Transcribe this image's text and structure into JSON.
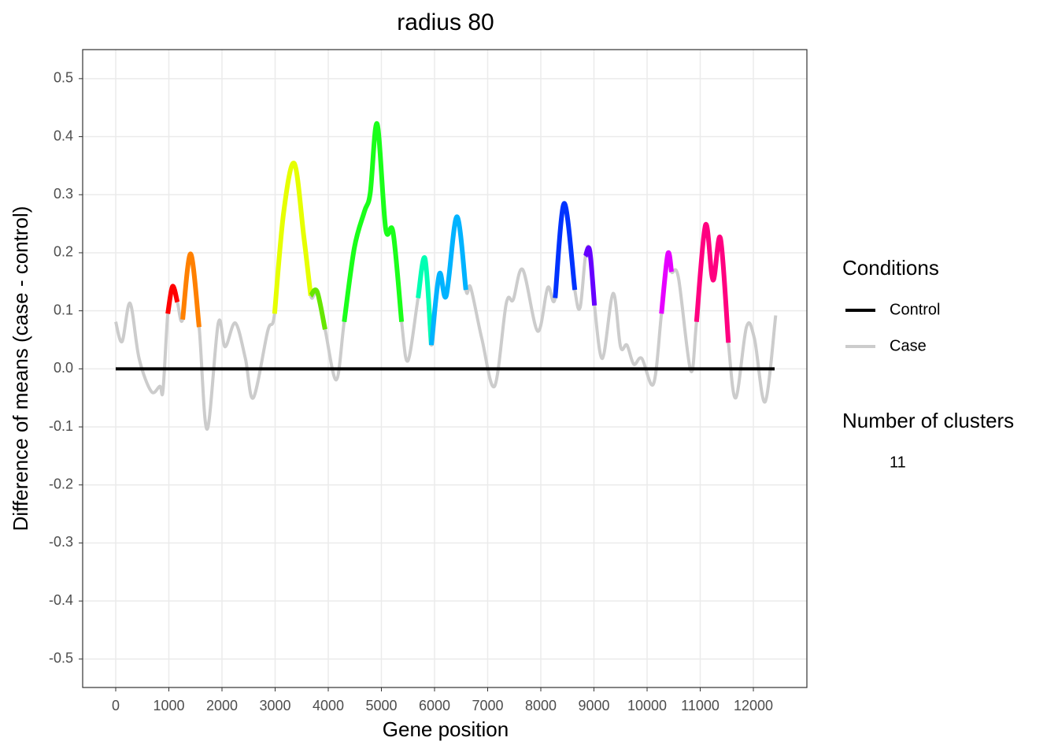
{
  "chart_data": {
    "type": "line",
    "title": "radius 80",
    "x_label": "Gene position",
    "y_label": "Difference of means (case - control)",
    "legend_title": "Conditions",
    "xlim": [
      -622,
      13007
    ],
    "ylim": [
      -0.549,
      0.55
    ],
    "xticks": [
      0,
      1000,
      2000,
      3000,
      4000,
      5000,
      6000,
      7000,
      8000,
      9000,
      10000,
      11000,
      12000
    ],
    "yticks": [
      -0.5,
      -0.4,
      -0.3,
      -0.2,
      -0.1,
      {
        "value": 0,
        "label": "0.0"
      },
      0.1,
      0.2,
      0.3,
      0.4,
      0.5
    ],
    "grid": true,
    "series": [
      {
        "name": "Control",
        "color": "#000000",
        "x": [
          0,
          12400
        ],
        "values": [
          0,
          0
        ]
      },
      {
        "name": "Case",
        "color": "#cccccc",
        "x": [
          0,
          120,
          270,
          440,
          670,
          830,
          890,
          980,
          1070,
          1160,
          1260,
          1410,
          1570,
          1720,
          1930,
          2060,
          2250,
          2440,
          2590,
          2860,
          2990,
          3160,
          3360,
          3540,
          3670,
          3790,
          3940,
          4150,
          4300,
          4490,
          4680,
          4790,
          4920,
          5080,
          5220,
          5380,
          5500,
          5690,
          5820,
          5940,
          6090,
          6220,
          6420,
          6590,
          6680,
          6890,
          7130,
          7350,
          7480,
          7660,
          7940,
          8130,
          8270,
          8440,
          8640,
          8740,
          8840,
          8920,
          9010,
          9160,
          9360,
          9500,
          9620,
          9750,
          9900,
          10120,
          10270,
          10390,
          10460,
          10590,
          10820,
          10930,
          11100,
          11240,
          11380,
          11530,
          11670,
          11870,
          12020,
          12220,
          12420
        ],
        "values": [
          0.081,
          0.047,
          0.113,
          0.018,
          -0.039,
          -0.03,
          -0.037,
          0.095,
          0.142,
          0.115,
          0.085,
          0.198,
          0.072,
          -0.104,
          0.079,
          0.038,
          0.079,
          0.018,
          -0.05,
          0.065,
          0.095,
          0.269,
          0.354,
          0.228,
          0.126,
          0.133,
          0.068,
          -0.019,
          0.081,
          0.208,
          0.271,
          0.303,
          0.422,
          0.242,
          0.235,
          0.081,
          0.014,
          0.122,
          0.19,
          0.041,
          0.163,
          0.126,
          0.262,
          0.136,
          0.14,
          0.052,
          -0.03,
          0.113,
          0.119,
          0.171,
          0.065,
          0.14,
          0.122,
          0.285,
          0.136,
          0.106,
          0.194,
          0.204,
          0.109,
          0.018,
          0.13,
          0.038,
          0.041,
          0.008,
          0.018,
          -0.026,
          0.095,
          0.198,
          0.167,
          0.157,
          -0.003,
          0.081,
          0.248,
          0.153,
          0.225,
          0.045,
          -0.05,
          0.072,
          0.052,
          -0.057,
          0.092
        ]
      }
    ],
    "clusters": [
      {
        "color": "#ff0000",
        "x": [
          980,
          1070,
          1160
        ],
        "values": [
          0.095,
          0.142,
          0.115
        ]
      },
      {
        "color": "#ff8000",
        "x": [
          1260,
          1410,
          1570
        ],
        "values": [
          0.085,
          0.198,
          0.072
        ]
      },
      {
        "color": "#e6ff00",
        "x": [
          2990,
          3160,
          3360,
          3540,
          3670
        ],
        "values": [
          0.095,
          0.269,
          0.354,
          0.228,
          0.126
        ]
      },
      {
        "color": "#66e600",
        "x": [
          3670,
          3790,
          3940
        ],
        "values": [
          0.126,
          0.133,
          0.068
        ]
      },
      {
        "color": "#1aff1a",
        "x": [
          4300,
          4490,
          4680,
          4790,
          4920,
          5080,
          5220,
          5380
        ],
        "values": [
          0.081,
          0.208,
          0.271,
          0.303,
          0.422,
          0.242,
          0.235,
          0.081
        ]
      },
      {
        "color": "#00ffb3",
        "x": [
          5690,
          5820,
          5940
        ],
        "values": [
          0.122,
          0.19,
          0.041
        ]
      },
      {
        "color": "#00b3ff",
        "x": [
          5940,
          6090,
          6220,
          6420,
          6590
        ],
        "values": [
          0.041,
          0.163,
          0.126,
          0.262,
          0.136
        ]
      },
      {
        "color": "#0033ff",
        "x": [
          8270,
          8440,
          8640
        ],
        "values": [
          0.122,
          0.285,
          0.136
        ]
      },
      {
        "color": "#6600ff",
        "x": [
          8840,
          8920,
          9010
        ],
        "values": [
          0.194,
          0.204,
          0.109
        ]
      },
      {
        "color": "#e600ff",
        "x": [
          10270,
          10390,
          10460
        ],
        "values": [
          0.095,
          0.198,
          0.167
        ]
      },
      {
        "color": "#ff0080",
        "x": [
          10930,
          11100,
          11240,
          11380,
          11530
        ],
        "values": [
          0.081,
          0.248,
          0.153,
          0.225,
          0.045
        ]
      }
    ],
    "cluster_count_title": "Number of clusters",
    "cluster_count": 11
  }
}
